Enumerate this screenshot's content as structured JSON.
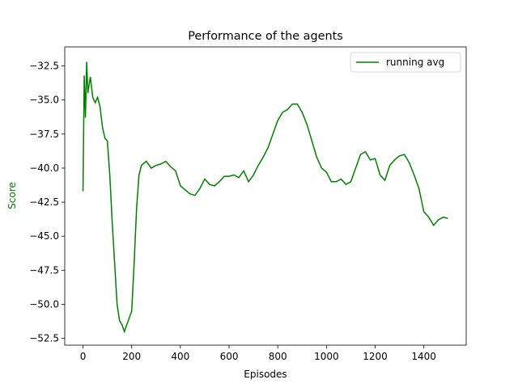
{
  "chart_data": {
    "type": "line",
    "title": "Performance of the agents",
    "x_label": "Episodes",
    "y_label": "Score",
    "x": [
      0,
      5,
      10,
      15,
      20,
      30,
      40,
      50,
      60,
      70,
      80,
      90,
      100,
      110,
      120,
      130,
      140,
      150,
      160,
      170,
      180,
      190,
      200,
      210,
      220,
      230,
      240,
      260,
      280,
      300,
      320,
      340,
      360,
      380,
      400,
      420,
      440,
      460,
      480,
      500,
      520,
      540,
      560,
      580,
      600,
      620,
      640,
      660,
      680,
      700,
      720,
      740,
      760,
      780,
      800,
      820,
      840,
      860,
      880,
      900,
      920,
      940,
      960,
      980,
      1000,
      1020,
      1040,
      1060,
      1080,
      1100,
      1120,
      1140,
      1160,
      1180,
      1200,
      1220,
      1240,
      1260,
      1280,
      1300,
      1320,
      1340,
      1360,
      1380,
      1400,
      1420,
      1440,
      1460,
      1480,
      1499
    ],
    "series": [
      {
        "name": "running avg",
        "color": "#008000",
        "values": [
          -41.7,
          -33.2,
          -36.3,
          -32.2,
          -34.5,
          -33.3,
          -34.8,
          -35.2,
          -34.8,
          -35.5,
          -37.0,
          -37.8,
          -38.0,
          -40.5,
          -44.0,
          -47.0,
          -50.0,
          -51.2,
          -51.5,
          -52.0,
          -51.5,
          -51.0,
          -50.5,
          -47.0,
          -43.0,
          -40.5,
          -39.8,
          -39.5,
          -40.0,
          -39.8,
          -39.7,
          -39.5,
          -39.9,
          -40.2,
          -41.3,
          -41.6,
          -41.9,
          -42.0,
          -41.5,
          -40.8,
          -41.2,
          -41.3,
          -41.0,
          -40.6,
          -40.6,
          -40.5,
          -40.7,
          -40.2,
          -41.0,
          -40.5,
          -39.8,
          -39.2,
          -38.5,
          -37.5,
          -36.5,
          -35.9,
          -35.7,
          -35.3,
          -35.3,
          -35.9,
          -36.8,
          -38.0,
          -39.2,
          -40.0,
          -40.3,
          -41.0,
          -41.0,
          -40.8,
          -41.2,
          -41.0,
          -40.0,
          -39.0,
          -38.8,
          -39.4,
          -39.3,
          -40.5,
          -40.9,
          -39.8,
          -39.4,
          -39.1,
          -39.0,
          -39.6,
          -40.5,
          -41.5,
          -43.2,
          -43.6,
          -44.2,
          -43.8,
          -43.6,
          -43.7
        ]
      }
    ],
    "xlim": [
      -75,
      1574
    ],
    "xticks": [
      0,
      200,
      400,
      600,
      800,
      1000,
      1200,
      1400
    ],
    "ylim": [
      -53.0,
      -31.1
    ],
    "yticks": [
      {
        "value": -52.5,
        "label": "−52.5"
      },
      {
        "value": -50,
        "label": "−50.0"
      },
      {
        "value": -47.5,
        "label": "−47.5"
      },
      {
        "value": -45,
        "label": "−45.0"
      },
      {
        "value": -42.5,
        "label": "−42.5"
      },
      {
        "value": -40,
        "label": "−40.0"
      },
      {
        "value": -37.5,
        "label": "−37.5"
      },
      {
        "value": -35,
        "label": "−35.0"
      },
      {
        "value": -32.5,
        "label": "−32.5"
      }
    ],
    "legend": "upper right",
    "y_label_color": "#008000"
  }
}
